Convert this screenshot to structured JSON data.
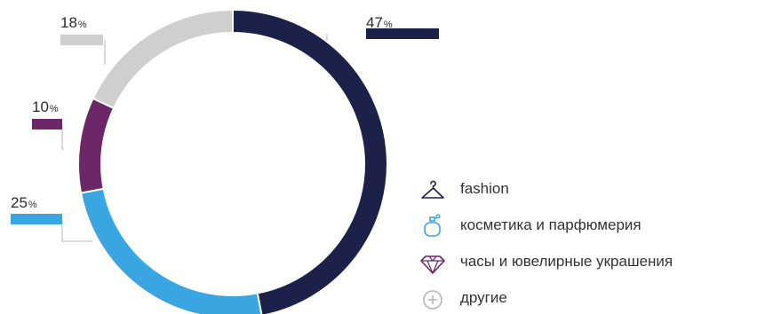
{
  "chart_data": {
    "type": "pie",
    "style": "donut",
    "title": "",
    "categories": [
      "fashion",
      "косметика и парфюмерия",
      "часы и ювелирные украшения",
      "другие"
    ],
    "values": [
      47,
      25,
      10,
      18
    ],
    "value_suffix": "%",
    "colors": [
      "#1c2149",
      "#3aa6e1",
      "#6b2768",
      "#cfcfcf"
    ],
    "legend_position": "right",
    "legend": [
      {
        "label": "fashion",
        "icon": "hanger-icon",
        "color": "#1c2149"
      },
      {
        "label": "косметика и парфюмерия",
        "icon": "perfume-bottle-icon",
        "color": "#3aa6e1"
      },
      {
        "label": "часы и ювелирные украшения",
        "icon": "diamond-icon",
        "color": "#6b2768"
      },
      {
        "label": "другие",
        "icon": "plus-circle-icon",
        "color": "#b5b5b5"
      }
    ]
  }
}
